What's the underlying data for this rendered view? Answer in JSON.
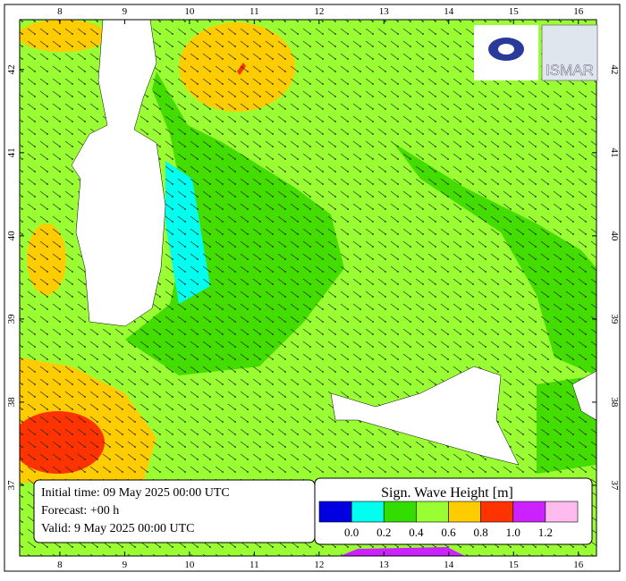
{
  "map": {
    "lon_ticks": [
      8,
      9,
      10,
      11,
      12,
      13,
      14,
      15,
      16
    ],
    "lat_ticks": [
      37,
      38,
      39,
      40,
      41,
      42
    ],
    "lon_range": [
      7.38,
      16.28
    ],
    "lat_range": [
      36.15,
      42.6
    ]
  },
  "info": [
    "Initial time: 09 May 2025 00:00 UTC",
    "Forecast: +00 h",
    "Valid:  9 May 2025 00:00 UTC"
  ],
  "legend": {
    "title": "Sign. Wave Height [m]",
    "colors": [
      "#0000e0",
      "#00ffee",
      "#33dd00",
      "#99ff33",
      "#ffcc00",
      "#ff3300",
      "#cc22ff",
      "#ffbbee"
    ],
    "labels": [
      "0.0",
      "0.2",
      "0.4",
      "0.6",
      "0.8",
      "1.0",
      "1.2"
    ]
  },
  "logo": "ISMAR"
}
